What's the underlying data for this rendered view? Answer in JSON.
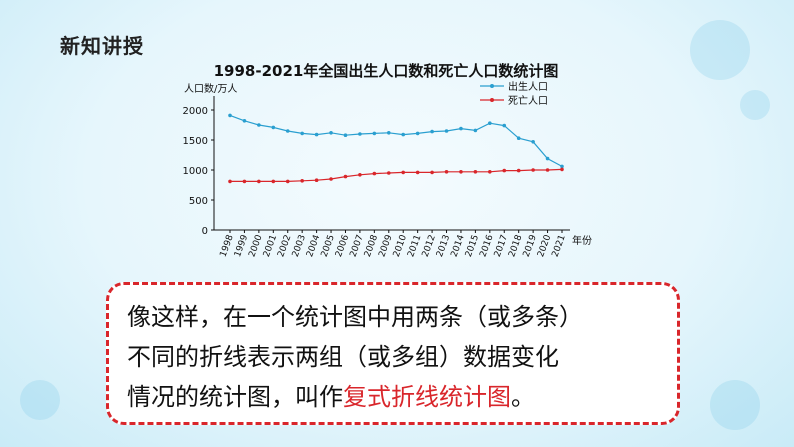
{
  "section_title": "新知讲授",
  "chart_data": {
    "type": "line",
    "title": "1998-2021年全国出生人口数和死亡人口数统计图",
    "ylabel": "人口数/万人",
    "xlabel": "年份",
    "ylim": [
      0,
      2000
    ],
    "yticks": [
      0,
      500,
      1000,
      1500,
      2000
    ],
    "categories": [
      "1998",
      "1999",
      "2000",
      "2001",
      "2002",
      "2003",
      "2004",
      "2005",
      "2006",
      "2007",
      "2008",
      "2009",
      "2010",
      "2011",
      "2012",
      "2013",
      "2014",
      "2015",
      "2016",
      "2017",
      "2018",
      "2019",
      "2020",
      "2021"
    ],
    "series": [
      {
        "name": "出生人口",
        "color": "#2a9fd0",
        "values": [
          1910,
          1820,
          1750,
          1710,
          1650,
          1610,
          1590,
          1620,
          1580,
          1600,
          1610,
          1620,
          1590,
          1610,
          1640,
          1650,
          1690,
          1660,
          1780,
          1740,
          1530,
          1470,
          1190,
          1060
        ]
      },
      {
        "name": "死亡人口",
        "color": "#d9262b",
        "values": [
          810,
          810,
          810,
          810,
          810,
          820,
          830,
          850,
          890,
          920,
          940,
          950,
          960,
          960,
          960,
          970,
          970,
          970,
          970,
          990,
          990,
          1000,
          1000,
          1010
        ]
      }
    ],
    "grid": false,
    "legend_position": "top-right"
  },
  "callout": {
    "line1": "像这样，在一个统计图中用两条（或多条）",
    "line2": "不同的折线表示两组（或多组）数据变化",
    "line3_prefix": "情况的统计图，叫作",
    "line3_highlight": "复式折线统计图",
    "line3_suffix": "。"
  }
}
